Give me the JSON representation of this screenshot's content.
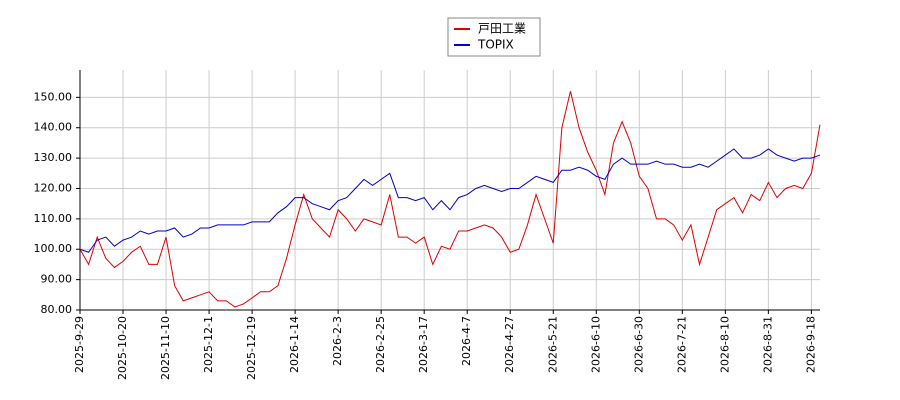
{
  "chart_data": {
    "type": "line",
    "categories": [
      "2025-9-29",
      null,
      null,
      null,
      null,
      "2025-10-20",
      null,
      null,
      null,
      null,
      "2025-11-10",
      null,
      null,
      null,
      null,
      "2025-12-1",
      null,
      null,
      null,
      null,
      "2025-12-19",
      null,
      null,
      null,
      null,
      "2026-1-14",
      null,
      null,
      null,
      null,
      "2026-2-3",
      null,
      null,
      null,
      null,
      "2026-2-25",
      null,
      null,
      null,
      null,
      "2026-3-17",
      null,
      null,
      null,
      null,
      "2026-4-7",
      null,
      null,
      null,
      null,
      "2026-4-27",
      null,
      null,
      null,
      null,
      "2026-5-21",
      null,
      null,
      null,
      null,
      "2026-6-10",
      null,
      null,
      null,
      null,
      "2026-6-30",
      null,
      null,
      null,
      null,
      "2026-7-21",
      null,
      null,
      null,
      null,
      "2026-8-10",
      null,
      null,
      null,
      null,
      "2026-8-31",
      null,
      null,
      null,
      null,
      "2026-9-18",
      null
    ],
    "series": [
      {
        "name": "戸田工業",
        "color": "#dd0000",
        "values": [
          100,
          95,
          104,
          97,
          94,
          96,
          99,
          101,
          95,
          95,
          104,
          88,
          83,
          84,
          85,
          86,
          83,
          83,
          81,
          82,
          84,
          86,
          86,
          88,
          97,
          108,
          118,
          110,
          107,
          104,
          113,
          110,
          106,
          110,
          109,
          108,
          118,
          104,
          104,
          102,
          104,
          95,
          101,
          100,
          106,
          106,
          107,
          108,
          107,
          104,
          99,
          100,
          108,
          118,
          110,
          102,
          140,
          152,
          140,
          132,
          126,
          118,
          135,
          142,
          135,
          124,
          120,
          110,
          110,
          108,
          103,
          108,
          95,
          104,
          113,
          115,
          117,
          112,
          118,
          116,
          122,
          117,
          120,
          121,
          120,
          125,
          141
        ]
      },
      {
        "name": "TOPIX",
        "color": "#0000cc",
        "values": [
          100,
          99,
          103,
          104,
          101,
          103,
          104,
          106,
          105,
          106,
          106,
          107,
          104,
          105,
          107,
          107,
          108,
          108,
          108,
          108,
          109,
          109,
          109,
          112,
          114,
          117,
          117,
          115,
          114,
          113,
          116,
          117,
          120,
          123,
          121,
          123,
          125,
          117,
          117,
          116,
          117,
          113,
          116,
          113,
          117,
          118,
          120,
          121,
          120,
          119,
          120,
          120,
          122,
          124,
          123,
          122,
          126,
          126,
          127,
          126,
          124,
          123,
          128,
          130,
          128,
          128,
          128,
          129,
          128,
          128,
          127,
          127,
          128,
          127,
          129,
          131,
          133,
          130,
          130,
          131,
          133,
          131,
          130,
          129,
          130,
          130,
          131
        ]
      }
    ],
    "ylim": [
      80,
      159
    ],
    "yticks": [
      {
        "value": 80,
        "label": "80.00"
      },
      {
        "value": 90,
        "label": "90.00"
      },
      {
        "value": 100,
        "label": "100.00"
      },
      {
        "value": 110,
        "label": "110.00"
      },
      {
        "value": 120,
        "label": "120.00"
      },
      {
        "value": 130,
        "label": "130.00"
      },
      {
        "value": 140,
        "label": "140.00"
      },
      {
        "value": 150,
        "label": "150.00"
      }
    ],
    "grid": true
  }
}
